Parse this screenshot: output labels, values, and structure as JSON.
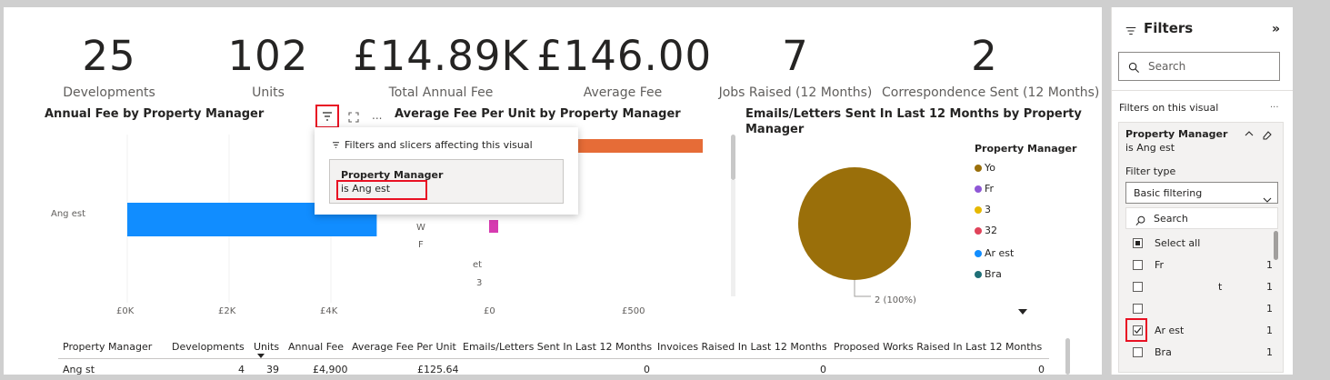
{
  "kpis": [
    {
      "value": "25",
      "label": "Developments"
    },
    {
      "value": "102",
      "label": "Units"
    },
    {
      "value": "£14.89K",
      "label": "Total Annual Fee"
    },
    {
      "value": "£146.00",
      "label": "Average Fee"
    },
    {
      "value": "7",
      "label": "Jobs Raised (12 Months)"
    },
    {
      "value": "2",
      "label": "Correspondence Sent (12 Months)"
    }
  ],
  "visual1": {
    "title": "Annual Fee by Property Manager",
    "row_label": "Ang est",
    "x_ticks": [
      "£0K",
      "£2K",
      "£4K"
    ]
  },
  "visual2": {
    "title": "Average Fee Per Unit by Property Manager",
    "row_labels": [
      "W",
      "F",
      "et",
      "3"
    ],
    "x_ticks": [
      "£0",
      "£500"
    ],
    "more": "..."
  },
  "visual3": {
    "title_line1": "Emails/Letters Sent In Last 12 Months by Property",
    "title_line2": "Manager",
    "legend_title": "Property Manager",
    "legend": [
      {
        "label": "Yo",
        "color": "#9a6f0a"
      },
      {
        "label": "Fr",
        "color": "#8f57d6"
      },
      {
        "label": "3",
        "color": "#e6b800"
      },
      {
        "label": "32",
        "color": "#e0435a"
      },
      {
        "label": "Ar              est",
        "color": "#118dff"
      },
      {
        "label": "Bra",
        "color": "#1f6f76"
      }
    ],
    "slice_label": "2 (100%)"
  },
  "chart_data": [
    {
      "type": "bar",
      "title": "Annual Fee by Property Manager",
      "categories": [
        "Ang est"
      ],
      "values": [
        4900
      ],
      "xlim": [
        0,
        5500
      ]
    },
    {
      "type": "pie",
      "title": "Emails/Letters Sent In Last 12 Months by Property Manager",
      "categories": [
        "Yo"
      ],
      "values": [
        2
      ],
      "labels": [
        "2 (100%)"
      ]
    }
  ],
  "popup": {
    "header": "Filters and slicers affecting this visual",
    "card_title": "Property Manager",
    "card_sub": "is Ang     est"
  },
  "table": {
    "headers": [
      "Property Manager",
      "Developments",
      "Units",
      "Annual Fee",
      "Average Fee Per Unit",
      "Emails/Letters Sent In Last 12 Months",
      "Invoices Raised In Last 12 Months",
      "Proposed Works Raised In Last 12 Months"
    ],
    "row": [
      "Ang        st",
      "4",
      "39",
      "£4,900",
      "£125.64",
      "0",
      "0",
      "0"
    ]
  },
  "filters": {
    "title": "Filters",
    "collapse": "»",
    "search_placeholder": "Search",
    "on_visual": "Filters on this visual",
    "more": "...",
    "card_title": "Property Manager",
    "card_sub": "is Ang            est",
    "filter_type_label": "Filter type",
    "filter_type_value": "Basic filtering",
    "inner_search": "Search",
    "select_all": "Select all",
    "items": [
      {
        "label": "Fr",
        "count": "1",
        "checked": false
      },
      {
        "label": "t",
        "count": "1",
        "checked": false
      },
      {
        "label": "",
        "count": "1",
        "checked": false
      },
      {
        "label": "Ar              est",
        "count": "1",
        "checked": true
      },
      {
        "label": "Bra",
        "count": "1",
        "checked": false
      }
    ]
  }
}
